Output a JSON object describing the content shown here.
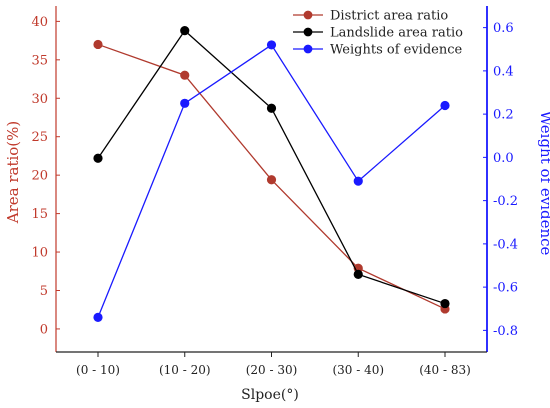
{
  "chart_data": {
    "type": "line",
    "categories": [
      "(0 - 10)",
      "(10 - 20)",
      "(20 - 30)",
      "(30 - 40)",
      "(40 - 83)"
    ],
    "xlabel": "Slpoe(°)",
    "y_left": {
      "label": "Area ratio(%)",
      "lim": [
        -3,
        42
      ],
      "ticks": [
        0,
        5,
        10,
        15,
        20,
        25,
        30,
        35,
        40
      ],
      "color": "#c0392b"
    },
    "y_right": {
      "label": "Weight of evidence",
      "lim": [
        -0.9,
        0.7
      ],
      "ticks": [
        "0.6",
        "0.4",
        "0.2",
        "0.0",
        "-0.2",
        "-0.4",
        "-0.6",
        "-0.8"
      ],
      "tick_values": [
        0.6,
        0.4,
        0.2,
        0.0,
        -0.2,
        -0.4,
        -0.6,
        -0.8
      ],
      "color": "#1a1aff"
    },
    "legend_position": "top-right",
    "series": [
      {
        "name": "District area ratio",
        "axis": "left",
        "color": "#b03a2e",
        "marker_fill": "#b03a2e",
        "values": [
          37.0,
          33.0,
          19.4,
          7.9,
          2.6
        ]
      },
      {
        "name": "Landslide area ratio",
        "axis": "left",
        "color": "#000000",
        "marker_fill": "#000000",
        "values": [
          22.2,
          38.8,
          28.7,
          7.1,
          3.3
        ]
      },
      {
        "name": "Weights of evidence",
        "axis": "right",
        "color": "#1a1aff",
        "marker_fill": "#1a1aff",
        "values": [
          -0.74,
          0.25,
          0.52,
          -0.11,
          0.24
        ]
      }
    ]
  }
}
